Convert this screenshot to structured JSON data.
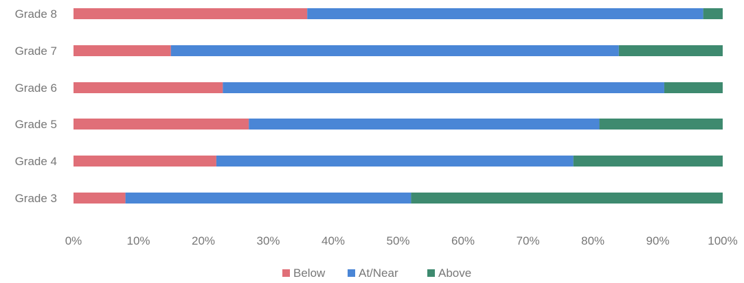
{
  "chart_data": {
    "type": "bar",
    "orientation": "horizontal",
    "stacked": true,
    "normalized": true,
    "categories": [
      "Grade 3",
      "Grade 4",
      "Grade 5",
      "Grade 6",
      "Grade 7",
      "Grade 8"
    ],
    "series": [
      {
        "name": "Below",
        "color": "#e06f78",
        "values": [
          8,
          22,
          27,
          23,
          15,
          36
        ]
      },
      {
        "name": "At/Near",
        "color": "#4a86d6",
        "values": [
          44,
          55,
          54,
          68,
          69,
          61
        ]
      },
      {
        "name": "Above",
        "color": "#3e8a6f",
        "values": [
          48,
          23,
          19,
          9,
          16,
          3
        ]
      }
    ],
    "xlim": [
      0,
      100
    ],
    "xticks": [
      "0%",
      "10%",
      "20%",
      "30%",
      "40%",
      "50%",
      "60%",
      "70%",
      "80%",
      "90%",
      "100%"
    ],
    "title": "",
    "xlabel": "",
    "ylabel": "",
    "grid": false,
    "legend_position": "bottom"
  }
}
